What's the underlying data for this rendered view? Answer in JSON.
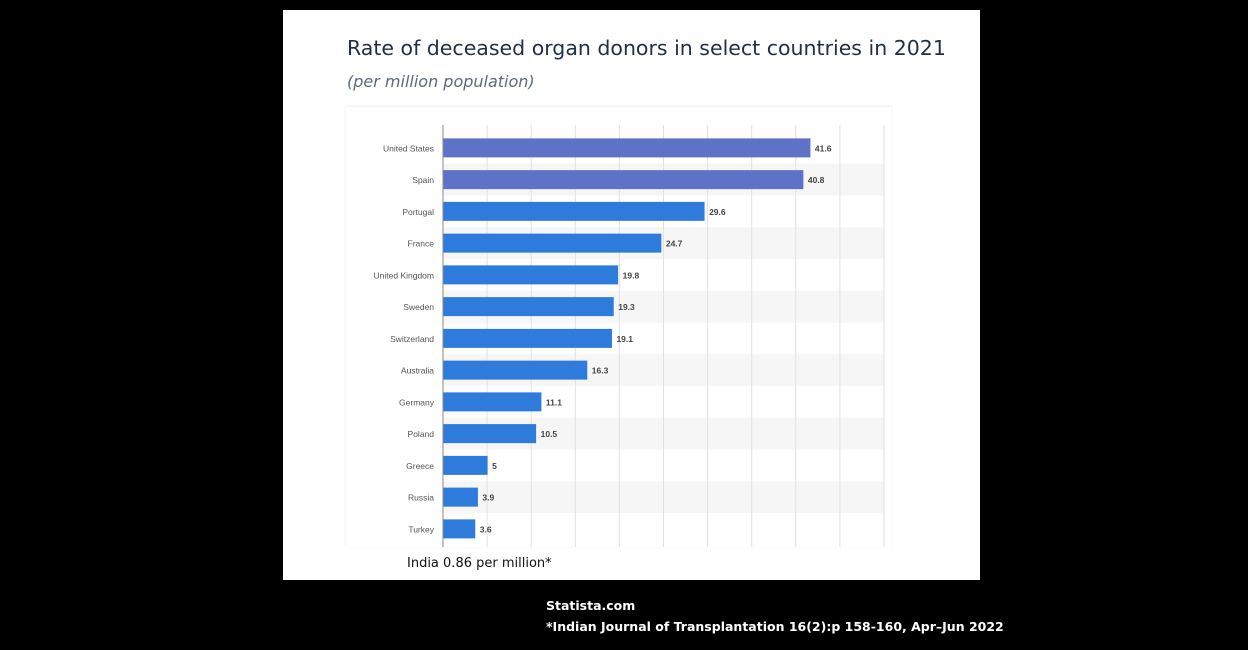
{
  "chart_data": {
    "type": "bar",
    "orientation": "horizontal",
    "title": "Rate of deceased organ donors in select countries in 2021",
    "subtitle": "(per million population)",
    "categories": [
      "United States",
      "Spain",
      "Portugal",
      "France",
      "United Kingdom",
      "Sweden",
      "Switzerland",
      "Australia",
      "Germany",
      "Poland",
      "Greece",
      "Russia",
      "Turkey"
    ],
    "values": [
      41.6,
      40.8,
      29.6,
      24.7,
      19.8,
      19.3,
      19.1,
      16.3,
      11.1,
      10.5,
      5,
      3.9,
      3.6
    ],
    "value_labels": [
      "41.6",
      "40.8",
      "29.6",
      "24.7",
      "19.8",
      "19.3",
      "19.1",
      "16.3",
      "11.1",
      "10.5",
      "5",
      "3.9",
      "3.6"
    ],
    "highlighted": [
      "United States",
      "Spain"
    ],
    "colors": {
      "bar": "#2e7bdc",
      "highlight": "#5e72c8"
    },
    "xlim": [
      0,
      50
    ],
    "grid": true,
    "legend": "none"
  },
  "footnote": "India 0.86 per million*",
  "source": {
    "line1": "Statista.com",
    "line2": "*Indian Journal of Transplantation 16(2):p 158-160, Apr–Jun 2022"
  }
}
